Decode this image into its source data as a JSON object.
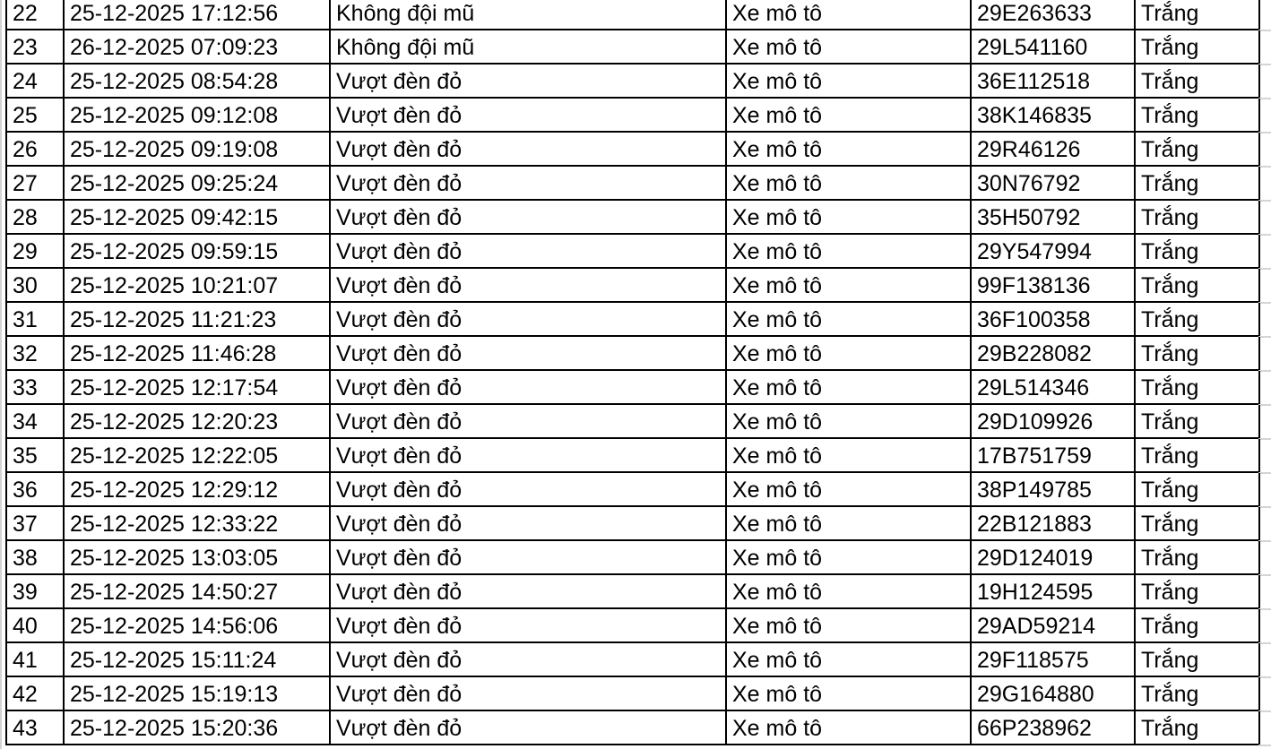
{
  "rows": [
    {
      "stt": "22",
      "time": "25-12-2025 17:12:56",
      "violation": "Không đội mũ",
      "vehicle": "Xe mô tô",
      "plate": "29E263633",
      "color": "Trắng"
    },
    {
      "stt": "23",
      "time": "26-12-2025 07:09:23",
      "violation": "Không đội mũ",
      "vehicle": "Xe mô tô",
      "plate": "29L541160",
      "color": "Trắng"
    },
    {
      "stt": "24",
      "time": "25-12-2025 08:54:28",
      "violation": "Vượt đèn đỏ",
      "vehicle": "Xe mô tô",
      "plate": "36E112518",
      "color": "Trắng"
    },
    {
      "stt": "25",
      "time": "25-12-2025 09:12:08",
      "violation": "Vượt đèn đỏ",
      "vehicle": "Xe mô tô",
      "plate": "38K146835",
      "color": "Trắng"
    },
    {
      "stt": "26",
      "time": "25-12-2025 09:19:08",
      "violation": "Vượt đèn đỏ",
      "vehicle": "Xe mô tô",
      "plate": "29R46126",
      "color": "Trắng"
    },
    {
      "stt": "27",
      "time": "25-12-2025 09:25:24",
      "violation": "Vượt đèn đỏ",
      "vehicle": "Xe mô tô",
      "plate": "30N76792",
      "color": "Trắng"
    },
    {
      "stt": "28",
      "time": "25-12-2025 09:42:15",
      "violation": "Vượt đèn đỏ",
      "vehicle": "Xe mô tô",
      "plate": "35H50792",
      "color": "Trắng"
    },
    {
      "stt": "29",
      "time": "25-12-2025 09:59:15",
      "violation": "Vượt đèn đỏ",
      "vehicle": "Xe mô tô",
      "plate": "29Y547994",
      "color": "Trắng"
    },
    {
      "stt": "30",
      "time": "25-12-2025 10:21:07",
      "violation": "Vượt đèn đỏ",
      "vehicle": "Xe mô tô",
      "plate": "99F138136",
      "color": "Trắng"
    },
    {
      "stt": "31",
      "time": "25-12-2025 11:21:23",
      "violation": "Vượt đèn đỏ",
      "vehicle": "Xe mô tô",
      "plate": "36F100358",
      "color": "Trắng"
    },
    {
      "stt": "32",
      "time": "25-12-2025 11:46:28",
      "violation": "Vượt đèn đỏ",
      "vehicle": "Xe mô tô",
      "plate": "29B228082",
      "color": "Trắng"
    },
    {
      "stt": "33",
      "time": "25-12-2025 12:17:54",
      "violation": "Vượt đèn đỏ",
      "vehicle": "Xe mô tô",
      "plate": "29L514346",
      "color": "Trắng"
    },
    {
      "stt": "34",
      "time": "25-12-2025 12:20:23",
      "violation": "Vượt đèn đỏ",
      "vehicle": "Xe mô tô",
      "plate": "29D109926",
      "color": "Trắng"
    },
    {
      "stt": "35",
      "time": "25-12-2025 12:22:05",
      "violation": "Vượt đèn đỏ",
      "vehicle": "Xe mô tô",
      "plate": "17B751759",
      "color": "Trắng"
    },
    {
      "stt": "36",
      "time": "25-12-2025 12:29:12",
      "violation": "Vượt đèn đỏ",
      "vehicle": "Xe mô tô",
      "plate": "38P149785",
      "color": "Trắng"
    },
    {
      "stt": "37",
      "time": "25-12-2025 12:33:22",
      "violation": "Vượt đèn đỏ",
      "vehicle": "Xe mô tô",
      "plate": "22B121883",
      "color": "Trắng"
    },
    {
      "stt": "38",
      "time": "25-12-2025 13:03:05",
      "violation": "Vượt đèn đỏ",
      "vehicle": "Xe mô tô",
      "plate": "29D124019",
      "color": "Trắng"
    },
    {
      "stt": "39",
      "time": "25-12-2025 14:50:27",
      "violation": "Vượt đèn đỏ",
      "vehicle": "Xe mô tô",
      "plate": "19H124595",
      "color": "Trắng"
    },
    {
      "stt": "40",
      "time": "25-12-2025 14:56:06",
      "violation": "Vượt đèn đỏ",
      "vehicle": "Xe mô tô",
      "plate": "29AD59214",
      "color": "Trắng"
    },
    {
      "stt": "41",
      "time": "25-12-2025 15:11:24",
      "violation": "Vượt đèn đỏ",
      "vehicle": "Xe mô tô",
      "plate": "29F118575",
      "color": "Trắng"
    },
    {
      "stt": "42",
      "time": "25-12-2025 15:19:13",
      "violation": "Vượt đèn đỏ",
      "vehicle": "Xe mô tô",
      "plate": "29G164880",
      "color": "Trắng"
    },
    {
      "stt": "43",
      "time": "25-12-2025 15:20:36",
      "violation": "Vượt đèn đỏ",
      "vehicle": "Xe mô tô",
      "plate": "66P238962",
      "color": "Trắng"
    }
  ]
}
